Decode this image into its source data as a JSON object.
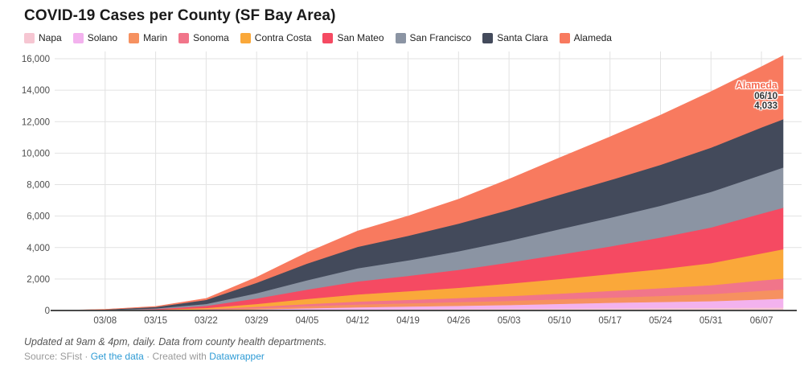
{
  "header": {
    "title": "COVID-19 Cases per County (SF Bay Area)"
  },
  "colors": {
    "link_blue": "#2e9bd5",
    "grid": "#e2e2e2",
    "baseline": "#4a4a4a",
    "tick_text": "#4c4c4c",
    "annotation_series": "#f76950",
    "annotation_text": "#333333"
  },
  "chart_data": {
    "type": "area",
    "stacked": true,
    "title": "COVID-19 Cases per County (SF Bay Area)",
    "xlabel": "",
    "ylabel": "",
    "ylim": [
      0,
      16000
    ],
    "grid": true,
    "legend_position": "top",
    "x_dates": [
      "03/01",
      "03/08",
      "03/15",
      "03/22",
      "03/29",
      "04/05",
      "04/12",
      "04/19",
      "04/26",
      "05/03",
      "05/10",
      "05/17",
      "05/24",
      "05/31",
      "06/07",
      "06/10"
    ],
    "x_days": [
      0,
      7,
      14,
      21,
      28,
      35,
      42,
      49,
      56,
      63,
      70,
      77,
      84,
      91,
      98,
      101
    ],
    "x_tick_days": [
      7,
      14,
      21,
      28,
      35,
      42,
      49,
      56,
      63,
      70,
      77,
      84,
      91,
      98
    ],
    "x_tick_labels": [
      "03/08",
      "03/15",
      "03/22",
      "03/29",
      "04/05",
      "04/12",
      "04/19",
      "04/26",
      "05/03",
      "05/10",
      "05/17",
      "05/24",
      "05/31",
      "06/07"
    ],
    "y_tick_values": [
      0,
      2000,
      4000,
      6000,
      8000,
      10000,
      12000,
      14000,
      16000
    ],
    "y_tick_labels": [
      "0",
      "2,000",
      "4,000",
      "6,000",
      "8,000",
      "10,000",
      "12,000",
      "14,000",
      "16,000"
    ],
    "series": [
      {
        "name": "Napa",
        "color": "#f6c6d2",
        "values": [
          0,
          1,
          3,
          10,
          25,
          45,
          65,
          80,
          95,
          110,
          125,
          140,
          155,
          170,
          185,
          195
        ]
      },
      {
        "name": "Solano",
        "color": "#f3b2ee",
        "values": [
          0,
          2,
          5,
          18,
          50,
          100,
          145,
          175,
          205,
          245,
          300,
          355,
          390,
          430,
          520,
          560
        ]
      },
      {
        "name": "Marin",
        "color": "#f69160",
        "values": [
          0,
          2,
          8,
          30,
          80,
          130,
          175,
          205,
          235,
          265,
          295,
          330,
          385,
          450,
          545,
          580
        ]
      },
      {
        "name": "Sonoma",
        "color": "#f1758a",
        "values": [
          0,
          2,
          8,
          30,
          85,
          140,
          185,
          220,
          260,
          300,
          355,
          420,
          490,
          560,
          665,
          700
        ]
      },
      {
        "name": "Contra Costa",
        "color": "#faa83a",
        "values": [
          0,
          5,
          25,
          75,
          180,
          320,
          450,
          545,
          650,
          790,
          930,
          1070,
          1210,
          1400,
          1720,
          1860
        ]
      },
      {
        "name": "San Mateo",
        "color": "#f54a62",
        "values": [
          0,
          15,
          50,
          135,
          350,
          600,
          830,
          980,
          1140,
          1340,
          1550,
          1760,
          2010,
          2270,
          2530,
          2640
        ]
      },
      {
        "name": "San Francisco",
        "color": "#8b94a3",
        "values": [
          0,
          10,
          40,
          120,
          335,
          590,
          840,
          985,
          1180,
          1380,
          1620,
          1820,
          2020,
          2260,
          2460,
          2560
        ]
      },
      {
        "name": "Santa Clara",
        "color": "#434a5b",
        "values": [
          2,
          30,
          85,
          260,
          660,
          1060,
          1360,
          1560,
          1760,
          1970,
          2180,
          2390,
          2600,
          2810,
          3010,
          3060
        ]
      },
      {
        "name": "Alameda",
        "color": "#f87a5f",
        "values": [
          0,
          10,
          35,
          90,
          350,
          700,
          1000,
          1250,
          1550,
          1950,
          2350,
          2750,
          3150,
          3560,
          3860,
          4033
        ]
      }
    ]
  },
  "annotation": {
    "series": "Alameda",
    "date": "06/10",
    "value": "4,033"
  },
  "footer": {
    "notes": "Updated at 9am & 4pm, daily. Data from county health departments.",
    "source_label": "Source:",
    "source_name": "SFist",
    "separator": "·",
    "get_data_link": "Get the data",
    "created_with": "Created with",
    "datawrapper_link": "Datawrapper"
  }
}
